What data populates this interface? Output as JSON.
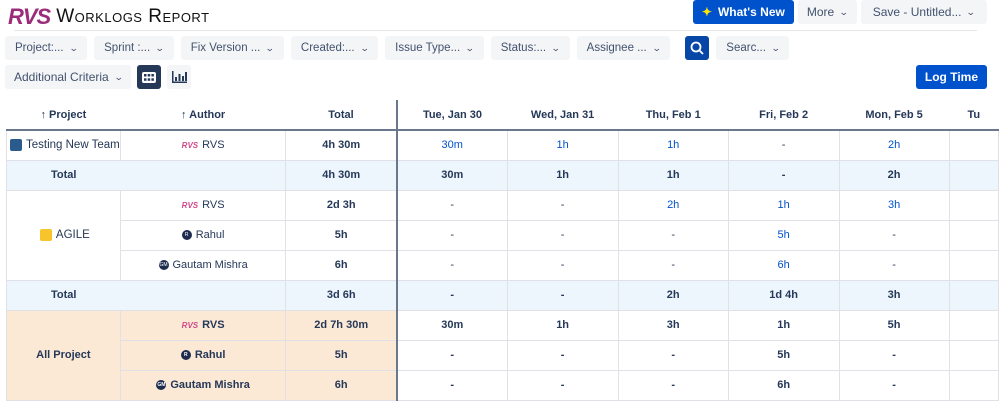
{
  "header": {
    "logo": "RVS",
    "title": "Worklogs Report"
  },
  "top_buttons": {
    "whats_new": "What's New",
    "more": "More",
    "save": "Save - Untitled..."
  },
  "filters": [
    "Project:...",
    "Sprint :...",
    "Fix Version ...",
    "Created:...",
    "Issue Type...",
    "Status:...",
    "Assignee ..."
  ],
  "search_filter": "Searc...",
  "additional_criteria": "Additional Criteria",
  "log_time": "Log Time",
  "colors": {
    "accent": "#0052cc",
    "total_row": "#eef6fd",
    "all_project": "#fbe9d6"
  },
  "table": {
    "columns": [
      "Project",
      "Author",
      "Total",
      "Tue, Jan 30",
      "Wed, Jan 31",
      "Thu, Feb 1",
      "Fri, Feb 2",
      "Mon, Feb 5",
      "Tu"
    ],
    "groups": [
      {
        "project": "Testing New Team",
        "project_icon": "rocket-icon",
        "rows": [
          {
            "author": "RVS",
            "avatar": "rvs-logo",
            "total": "4h 30m",
            "days": [
              "30m",
              "1h",
              "1h",
              "-",
              "2h",
              ""
            ]
          }
        ],
        "total": {
          "label": "Total",
          "total": "4h 30m",
          "days": [
            "30m",
            "1h",
            "1h",
            "-",
            "2h",
            ""
          ]
        }
      },
      {
        "project": "AGILE",
        "project_icon": "agile-icon",
        "rows": [
          {
            "author": "RVS",
            "avatar": "rvs-logo",
            "total": "2d 3h",
            "days": [
              "-",
              "-",
              "2h",
              "1h",
              "3h",
              ""
            ]
          },
          {
            "author": "Rahul",
            "avatar": "R",
            "total": "5h",
            "days": [
              "-",
              "-",
              "-",
              "5h",
              "-",
              ""
            ]
          },
          {
            "author": "Gautam Mishra",
            "avatar": "GM",
            "total": "6h",
            "days": [
              "-",
              "-",
              "-",
              "6h",
              "-",
              ""
            ]
          }
        ],
        "total": {
          "label": "Total",
          "total": "3d 6h",
          "days": [
            "-",
            "-",
            "2h",
            "1d 4h",
            "3h",
            ""
          ]
        }
      }
    ],
    "all_project": {
      "label": "All Project",
      "rows": [
        {
          "author": "RVS",
          "avatar": "rvs-logo",
          "total": "2d 7h 30m",
          "days": [
            "30m",
            "1h",
            "3h",
            "1h",
            "5h",
            ""
          ]
        },
        {
          "author": "Rahul",
          "avatar": "R",
          "total": "5h",
          "days": [
            "-",
            "-",
            "-",
            "5h",
            "-",
            ""
          ]
        },
        {
          "author": "Gautam Mishra",
          "avatar": "GM",
          "total": "6h",
          "days": [
            "-",
            "-",
            "-",
            "6h",
            "-",
            ""
          ]
        }
      ]
    }
  }
}
